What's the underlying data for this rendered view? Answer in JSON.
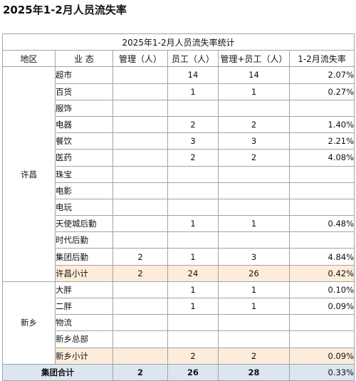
{
  "page_title": "2025年1-2月人员流失率",
  "table": {
    "title": "2025年1-2月人员流失率统计",
    "headers": [
      "地区",
      "业 态",
      "管理（人）",
      "员工（人）",
      "管理+员工（人）",
      "1-2月流失率"
    ],
    "regions": [
      {
        "name": "许昌",
        "rows": [
          {
            "biz": "超市",
            "mgmt": "",
            "staff": "14",
            "total": "14",
            "rate": "2.07%"
          },
          {
            "biz": "百货",
            "mgmt": "",
            "staff": "1",
            "total": "1",
            "rate": "0.27%"
          },
          {
            "biz": "服饰",
            "mgmt": "",
            "staff": "",
            "total": "",
            "rate": ""
          },
          {
            "biz": "电器",
            "mgmt": "",
            "staff": "2",
            "total": "2",
            "rate": "1.40%"
          },
          {
            "biz": "餐饮",
            "mgmt": "",
            "staff": "3",
            "total": "3",
            "rate": "2.21%"
          },
          {
            "biz": "医药",
            "mgmt": "",
            "staff": "2",
            "total": "2",
            "rate": "4.08%"
          },
          {
            "biz": "珠宝",
            "mgmt": "",
            "staff": "",
            "total": "",
            "rate": ""
          },
          {
            "biz": "电影",
            "mgmt": "",
            "staff": "",
            "total": "",
            "rate": ""
          },
          {
            "biz": "电玩",
            "mgmt": "",
            "staff": "",
            "total": "",
            "rate": ""
          },
          {
            "biz": "天使城后勤",
            "mgmt": "",
            "staff": "1",
            "total": "1",
            "rate": "0.48%"
          },
          {
            "biz": "时代后勤",
            "mgmt": "",
            "staff": "",
            "total": "",
            "rate": ""
          },
          {
            "biz": "集团后勤",
            "mgmt": "2",
            "staff": "1",
            "total": "3",
            "rate": "4.84%"
          }
        ],
        "subtotal": {
          "biz": "许昌小计",
          "mgmt": "2",
          "staff": "24",
          "total": "26",
          "rate": "0.42%"
        }
      },
      {
        "name": "新乡",
        "rows": [
          {
            "biz": "大胖",
            "mgmt": "",
            "staff": "1",
            "total": "1",
            "rate": "0.10%"
          },
          {
            "biz": "二胖",
            "mgmt": "",
            "staff": "1",
            "total": "1",
            "rate": "0.09%"
          },
          {
            "biz": "物流",
            "mgmt": "",
            "staff": "",
            "total": "",
            "rate": ""
          },
          {
            "biz": "新乡总部",
            "mgmt": "",
            "staff": "",
            "total": "",
            "rate": ""
          }
        ],
        "subtotal": {
          "biz": "新乡小计",
          "mgmt": "",
          "staff": "2",
          "total": "2",
          "rate": "0.09%"
        }
      }
    ],
    "grand_total": {
      "label": "集团合计",
      "mgmt": "2",
      "staff": "26",
      "total": "28",
      "rate": "0.33%"
    }
  },
  "colors": {
    "subtotal_fill": "#fdecd9",
    "total_fill": "#dce6f1",
    "border": "#9ea4aa"
  }
}
